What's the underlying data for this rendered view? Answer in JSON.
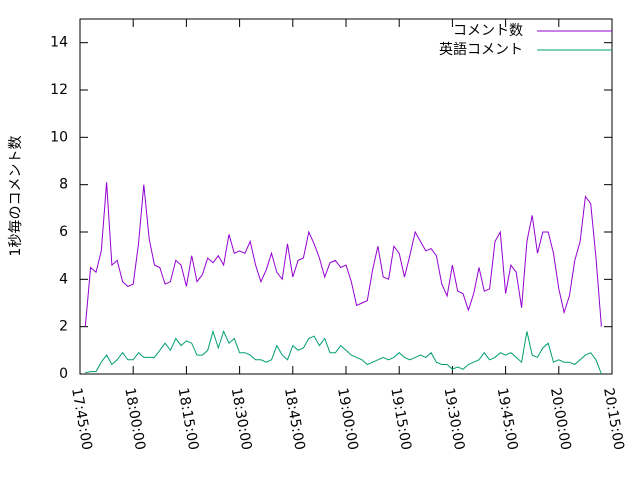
{
  "chart_data": {
    "type": "line",
    "y_label": "1秒毎のコメント数",
    "legend": "top right",
    "xlim": [
      "17:45:00",
      "20:15:00"
    ],
    "xticks": [
      "17:45:00",
      "18:00:00",
      "18:15:00",
      "18:30:00",
      "18:45:00",
      "19:00:00",
      "19:15:00",
      "19:30:00",
      "19:45:00",
      "20:00:00",
      "20:15:00"
    ],
    "ylim": [
      0,
      15
    ],
    "yticks": [
      0,
      2,
      4,
      6,
      8,
      10,
      12,
      14
    ],
    "x": [
      "17:46:30",
      "17:48:00",
      "17:49:30",
      "17:51:00",
      "17:52:30",
      "17:54:00",
      "17:55:30",
      "17:57:00",
      "17:58:30",
      "18:00:00",
      "18:01:30",
      "18:03:00",
      "18:04:30",
      "18:06:00",
      "18:07:30",
      "18:09:00",
      "18:10:30",
      "18:12:00",
      "18:13:30",
      "18:15:00",
      "18:16:30",
      "18:18:00",
      "18:19:30",
      "18:21:00",
      "18:22:30",
      "18:24:00",
      "18:25:30",
      "18:27:00",
      "18:28:30",
      "18:30:00",
      "18:31:30",
      "18:33:00",
      "18:34:30",
      "18:36:00",
      "18:37:30",
      "18:39:00",
      "18:40:30",
      "18:42:00",
      "18:43:30",
      "18:45:00",
      "18:46:30",
      "18:48:00",
      "18:49:30",
      "18:51:00",
      "18:52:30",
      "18:54:00",
      "18:55:30",
      "18:57:00",
      "18:58:30",
      "19:00:00",
      "19:01:30",
      "19:03:00",
      "19:04:30",
      "19:06:00",
      "19:07:30",
      "19:09:00",
      "19:10:30",
      "19:12:00",
      "19:13:30",
      "19:15:00",
      "19:16:30",
      "19:18:00",
      "19:19:30",
      "19:21:00",
      "19:22:30",
      "19:24:00",
      "19:25:30",
      "19:27:00",
      "19:28:30",
      "19:30:00",
      "19:31:30",
      "19:33:00",
      "19:34:30",
      "19:36:00",
      "19:37:30",
      "19:39:00",
      "19:40:30",
      "19:42:00",
      "19:43:30",
      "19:45:00",
      "19:46:30",
      "19:48:00",
      "19:49:30",
      "19:51:00",
      "19:52:30",
      "19:54:00",
      "19:55:30",
      "19:57:00",
      "19:58:30",
      "20:00:00",
      "20:01:30",
      "20:03:00",
      "20:04:30",
      "20:06:00",
      "20:07:30",
      "20:09:00",
      "20:10:30",
      "20:12:00"
    ],
    "series": [
      {
        "name": "コメント数",
        "color": "#9400d3",
        "values": [
          2.0,
          4.5,
          4.3,
          5.2,
          8.1,
          4.6,
          4.8,
          3.9,
          3.7,
          3.8,
          5.5,
          8.0,
          5.7,
          4.6,
          4.5,
          3.8,
          3.9,
          4.8,
          4.6,
          3.7,
          5.0,
          3.9,
          4.2,
          4.9,
          4.7,
          5.0,
          4.6,
          5.9,
          5.1,
          5.2,
          5.1,
          5.6,
          4.6,
          3.9,
          4.4,
          5.1,
          4.3,
          4.0,
          5.5,
          4.1,
          4.8,
          4.9,
          6.0,
          5.5,
          4.9,
          4.1,
          4.7,
          4.8,
          4.5,
          4.6,
          3.9,
          2.9,
          3.0,
          3.1,
          4.4,
          5.4,
          4.1,
          4.0,
          5.4,
          5.1,
          4.1,
          5.0,
          6.0,
          5.6,
          5.2,
          5.3,
          5.0,
          3.8,
          3.3,
          4.6,
          3.5,
          3.4,
          2.7,
          3.4,
          4.5,
          3.5,
          3.6,
          5.6,
          6.0,
          3.4,
          4.6,
          4.3,
          2.8,
          5.6,
          6.7,
          5.1,
          6.0,
          6.0,
          5.1,
          3.6,
          2.6,
          3.3,
          4.8,
          5.6,
          7.5,
          7.2,
          4.9,
          2.0
        ]
      },
      {
        "name": "英語コメント",
        "color": "#009e73",
        "values": [
          0.05,
          0.1,
          0.1,
          0.5,
          0.8,
          0.4,
          0.6,
          0.9,
          0.6,
          0.6,
          0.9,
          0.7,
          0.7,
          0.7,
          1.0,
          1.3,
          1.0,
          1.5,
          1.2,
          1.4,
          1.3,
          0.8,
          0.8,
          1.0,
          1.8,
          1.1,
          1.8,
          1.3,
          1.5,
          0.9,
          0.9,
          0.8,
          0.6,
          0.6,
          0.5,
          0.6,
          1.2,
          0.8,
          0.6,
          1.2,
          1.0,
          1.1,
          1.5,
          1.6,
          1.2,
          1.5,
          0.9,
          0.9,
          1.2,
          1.0,
          0.8,
          0.7,
          0.6,
          0.4,
          0.5,
          0.6,
          0.7,
          0.6,
          0.7,
          0.9,
          0.7,
          0.6,
          0.7,
          0.8,
          0.7,
          0.9,
          0.5,
          0.4,
          0.4,
          0.2,
          0.3,
          0.2,
          0.4,
          0.5,
          0.6,
          0.9,
          0.6,
          0.7,
          0.9,
          0.8,
          0.9,
          0.7,
          0.5,
          1.8,
          0.8,
          0.7,
          1.1,
          1.3,
          0.5,
          0.6,
          0.5,
          0.5,
          0.4,
          0.6,
          0.8,
          0.9,
          0.6,
          0.0
        ]
      }
    ]
  }
}
